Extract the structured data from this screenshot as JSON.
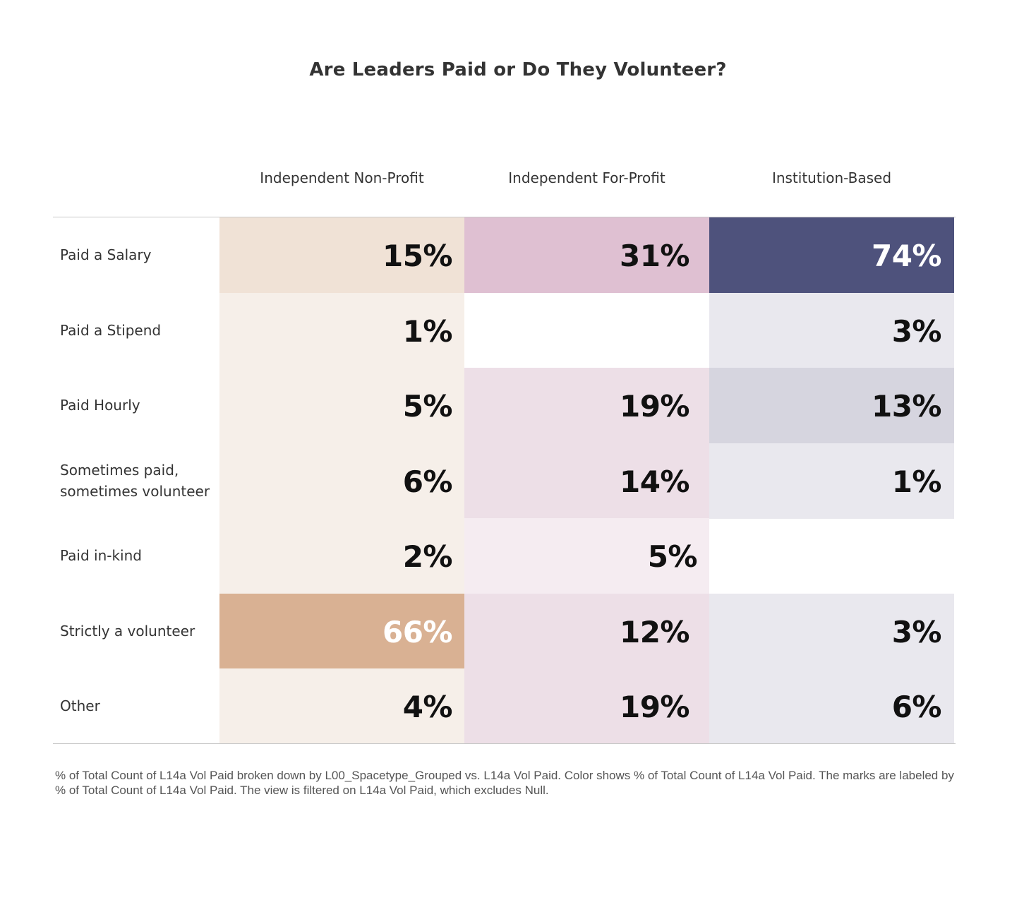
{
  "chart_data": {
    "type": "heatmap",
    "title": "Are Leaders Paid or Do They Volunteer?",
    "columns": [
      "Independent Non-Profit",
      "Independent For-Profit",
      "Institution-Based"
    ],
    "rows": [
      "Paid a Salary",
      "Paid a Stipend",
      "Paid Hourly",
      "Sometimes paid,\nsometimes volunteer",
      "Paid in-kind",
      "Strictly a volunteer",
      "Other"
    ],
    "values": [
      [
        15,
        31,
        74
      ],
      [
        1,
        null,
        3
      ],
      [
        5,
        19,
        13
      ],
      [
        6,
        14,
        1
      ],
      [
        2,
        5,
        null
      ],
      [
        66,
        12,
        3
      ],
      [
        4,
        19,
        6
      ]
    ],
    "labels": [
      [
        "15%",
        "31%",
        "74%"
      ],
      [
        "1%",
        "",
        "3%"
      ],
      [
        "5%",
        "19%",
        "13%"
      ],
      [
        "6%",
        "14%",
        "1%"
      ],
      [
        "2%",
        "5%",
        ""
      ],
      [
        "66%",
        "12%",
        "3%"
      ],
      [
        "4%",
        "19%",
        "6%"
      ]
    ],
    "colors": [
      [
        "#f0e2d6",
        "#dfc0d2",
        "#4e527c"
      ],
      [
        "#f6efe9",
        null,
        "#e9e8ee"
      ],
      [
        "#f6efe9",
        "#eddfe7",
        "#d6d5df"
      ],
      [
        "#f6efe9",
        "#eddfe7",
        "#e9e8ee"
      ],
      [
        "#f6efe9",
        "#f5ecf1",
        null
      ],
      [
        "#d9b193",
        "#eddfe7",
        "#e9e8ee"
      ],
      [
        "#f6efe9",
        "#eddfe7",
        "#e9e8ee"
      ]
    ],
    "label_colors": [
      [
        "#111111",
        "#111111",
        "#ffffff"
      ],
      [
        "#111111",
        null,
        "#111111"
      ],
      [
        "#111111",
        "#111111",
        "#111111"
      ],
      [
        "#111111",
        "#111111",
        "#111111"
      ],
      [
        "#111111",
        "#111111",
        null
      ],
      [
        "#ffffff",
        "#111111",
        "#111111"
      ],
      [
        "#111111",
        "#111111",
        "#111111"
      ]
    ],
    "footnote": "% of Total Count of L14a Vol Paid broken down by L00_Spacetype_Grouped vs. L14a Vol Paid.  Color shows % of Total Count of L14a Vol Paid.  The marks are labeled by % of Total Count of L14a Vol Paid. The view is filtered on L14a Vol Paid, which excludes Null."
  }
}
